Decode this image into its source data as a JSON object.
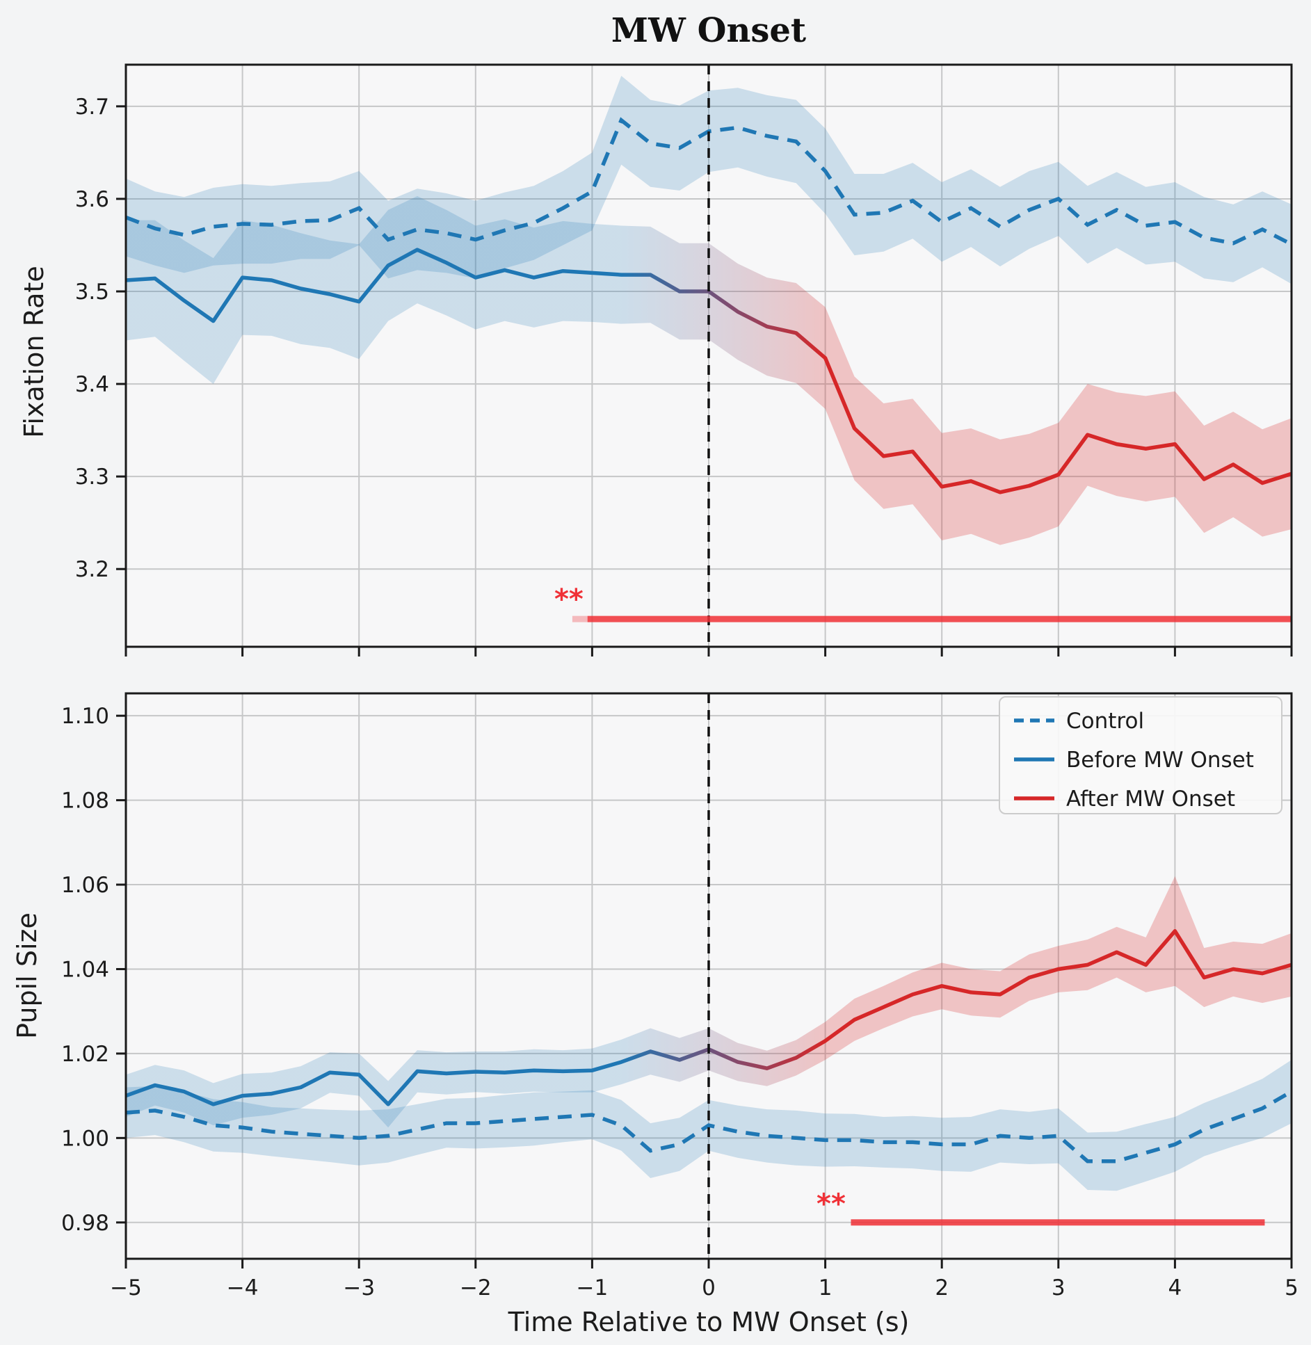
{
  "title": "MW Onset",
  "colors": {
    "blue": "#1f77b4",
    "red": "#d62728",
    "transition_purple": "#7a4e74",
    "significance": "#f03137",
    "grid": "#c6c7c8",
    "axes_background": "#f7f7f8",
    "figure_background": "#f3f4f5",
    "spine": "#1a1a1a",
    "text": "#1c1c1c"
  },
  "legend": {
    "items": [
      {
        "label": "Control",
        "style": "dashed",
        "color": "#1f77b4"
      },
      {
        "label": "Before MW Onset",
        "style": "solid",
        "color": "#1f77b4"
      },
      {
        "label": "After MW Onset",
        "style": "solid",
        "color": "#d62728"
      }
    ]
  },
  "chart_data": [
    {
      "type": "line",
      "title": "",
      "ylabel": "Fixation Rate",
      "xlabel": "",
      "xlim": [
        -5,
        5
      ],
      "ylim": [
        3.116,
        3.745
      ],
      "grid": true,
      "onset_line_x": 0,
      "xticks": {
        "values": [
          -5,
          -4,
          -3,
          -2,
          -1,
          0,
          1,
          2,
          3,
          4,
          5
        ],
        "labels": [
          "−5",
          "−4",
          "−3",
          "−2",
          "−1",
          "0",
          "1",
          "2",
          "3",
          "4",
          "5"
        ],
        "show_labels": false
      },
      "yticks": {
        "values": [
          3.2,
          3.3,
          3.4,
          3.5,
          3.6,
          3.7
        ],
        "labels": [
          "3.2",
          "3.3",
          "3.4",
          "3.5",
          "3.6",
          "3.7"
        ]
      },
      "series": [
        {
          "name": "Control",
          "style": "dashed",
          "color": "#1f77b4",
          "x": [
            -5,
            -4.75,
            -4.5,
            -4.25,
            -4,
            -3.75,
            -3.5,
            -3.25,
            -3,
            -2.75,
            -2.5,
            -2.25,
            -2,
            -1.75,
            -1.5,
            -1.25,
            -1,
            -0.75,
            -0.5,
            -0.25,
            0,
            0.25,
            0.5,
            0.75,
            1,
            1.25,
            1.5,
            1.75,
            2,
            2.25,
            2.5,
            2.75,
            3,
            3.25,
            3.5,
            3.75,
            4,
            4.25,
            4.5,
            4.75,
            5
          ],
          "y": [
            3.58,
            3.568,
            3.561,
            3.57,
            3.573,
            3.572,
            3.576,
            3.577,
            3.59,
            3.556,
            3.567,
            3.563,
            3.556,
            3.566,
            3.574,
            3.59,
            3.608,
            3.685,
            3.66,
            3.655,
            3.673,
            3.677,
            3.668,
            3.662,
            3.63,
            3.583,
            3.585,
            3.598,
            3.575,
            3.59,
            3.57,
            3.588,
            3.6,
            3.572,
            3.588,
            3.571,
            3.575,
            3.558,
            3.552,
            3.567,
            3.551
          ],
          "band_halfwidth": [
            0.042,
            0.04,
            0.041,
            0.042,
            0.043,
            0.042,
            0.041,
            0.042,
            0.04,
            0.042,
            0.044,
            0.043,
            0.042,
            0.041,
            0.04,
            0.04,
            0.042,
            0.048,
            0.047,
            0.046,
            0.044,
            0.043,
            0.044,
            0.045,
            0.046,
            0.044,
            0.042,
            0.041,
            0.043,
            0.042,
            0.043,
            0.042,
            0.04,
            0.042,
            0.041,
            0.042,
            0.043,
            0.044,
            0.042,
            0.041,
            0.043
          ]
        },
        {
          "name": "Before MW Onset",
          "style": "solid",
          "color": "#1f77b4",
          "x": [
            -5,
            -4.75,
            -4.5,
            -4.25,
            -4,
            -3.75,
            -3.5,
            -3.25,
            -3,
            -2.75,
            -2.5,
            -2.25,
            -2,
            -1.75,
            -1.5,
            -1.25,
            -1,
            -0.75,
            -0.5,
            -0.25,
            0
          ],
          "y": [
            3.512,
            3.514,
            3.49,
            3.468,
            3.515,
            3.512,
            3.503,
            3.497,
            3.489,
            3.528,
            3.545,
            3.531,
            3.515,
            3.523,
            3.515,
            3.522,
            3.52,
            3.518,
            3.518,
            3.5,
            3.5
          ],
          "band_halfwidth": [
            0.065,
            0.063,
            0.065,
            0.068,
            0.062,
            0.06,
            0.06,
            0.058,
            0.062,
            0.06,
            0.058,
            0.057,
            0.056,
            0.055,
            0.054,
            0.054,
            0.053,
            0.053,
            0.052,
            0.052,
            0.052
          ]
        },
        {
          "name": "After MW Onset",
          "style": "solid",
          "color": "#d62728",
          "x": [
            0,
            0.25,
            0.5,
            0.75,
            1,
            1.25,
            1.5,
            1.75,
            2,
            2.25,
            2.5,
            2.75,
            3,
            3.25,
            3.5,
            3.75,
            4,
            4.25,
            4.5,
            4.75,
            5
          ],
          "y": [
            3.5,
            3.478,
            3.462,
            3.455,
            3.428,
            3.352,
            3.322,
            3.327,
            3.289,
            3.295,
            3.283,
            3.29,
            3.302,
            3.345,
            3.335,
            3.33,
            3.335,
            3.297,
            3.313,
            3.293,
            3.303
          ],
          "band_halfwidth": [
            0.052,
            0.052,
            0.053,
            0.054,
            0.055,
            0.056,
            0.057,
            0.057,
            0.058,
            0.057,
            0.057,
            0.056,
            0.056,
            0.055,
            0.056,
            0.057,
            0.057,
            0.058,
            0.057,
            0.058,
            0.06
          ]
        }
      ],
      "significance": {
        "label": "**",
        "x_start": -1.04,
        "x_end": 5.0,
        "y": 3.146,
        "label_x": -1.2,
        "label_y": 3.168,
        "lead_in": true
      }
    },
    {
      "type": "line",
      "title": "",
      "ylabel": "Pupil Size",
      "xlabel": "Time Relative to MW Onset (s)",
      "xlim": [
        -5,
        5
      ],
      "ylim": [
        0.9714,
        1.1053
      ],
      "grid": true,
      "onset_line_x": 0,
      "xticks": {
        "values": [
          -5,
          -4,
          -3,
          -2,
          -1,
          0,
          1,
          2,
          3,
          4,
          5
        ],
        "labels": [
          "−5",
          "−4",
          "−3",
          "−2",
          "−1",
          "0",
          "1",
          "2",
          "3",
          "4",
          "5"
        ],
        "show_labels": true
      },
      "yticks": {
        "values": [
          0.98,
          1.0,
          1.02,
          1.04,
          1.06,
          1.08,
          1.1
        ],
        "labels": [
          "0.98",
          "1.00",
          "1.02",
          "1.04",
          "1.06",
          "1.08",
          "1.10"
        ]
      },
      "series": [
        {
          "name": "Control",
          "style": "dashed",
          "color": "#1f77b4",
          "x": [
            -5,
            -4.75,
            -4.5,
            -4.25,
            -4,
            -3.75,
            -3.5,
            -3.25,
            -3,
            -2.75,
            -2.5,
            -2.25,
            -2,
            -1.75,
            -1.5,
            -1.25,
            -1,
            -0.75,
            -0.5,
            -0.25,
            0,
            0.25,
            0.5,
            0.75,
            1,
            1.25,
            1.5,
            1.75,
            2,
            2.25,
            2.5,
            2.75,
            3,
            3.25,
            3.5,
            3.75,
            4,
            4.25,
            4.5,
            4.75,
            5
          ],
          "y": [
            1.006,
            1.0065,
            1.005,
            1.003,
            1.0025,
            1.0015,
            1.001,
            1.0005,
            1.0,
            1.0005,
            1.002,
            1.0035,
            1.0035,
            1.004,
            1.0045,
            1.005,
            1.0055,
            1.003,
            0.997,
            0.9985,
            1.003,
            1.0015,
            1.0005,
            1.0,
            0.9995,
            0.9995,
            0.999,
            0.999,
            0.9985,
            0.9985,
            1.0005,
            1.0,
            1.0005,
            0.9945,
            0.9945,
            0.9965,
            0.9985,
            1.002,
            1.0045,
            1.007,
            1.011
          ],
          "band_halfwidth": [
            0.006,
            0.0058,
            0.006,
            0.0062,
            0.006,
            0.0058,
            0.006,
            0.0062,
            0.0065,
            0.0063,
            0.006,
            0.0058,
            0.006,
            0.0062,
            0.0063,
            0.006,
            0.0058,
            0.006,
            0.0065,
            0.0063,
            0.006,
            0.0062,
            0.0063,
            0.0065,
            0.0063,
            0.0062,
            0.006,
            0.0062,
            0.0063,
            0.0065,
            0.0063,
            0.0062,
            0.0065,
            0.0068,
            0.007,
            0.0068,
            0.0065,
            0.0063,
            0.0065,
            0.007,
            0.0075
          ]
        },
        {
          "name": "Before MW Onset",
          "style": "solid",
          "color": "#1f77b4",
          "x": [
            -5,
            -4.75,
            -4.5,
            -4.25,
            -4,
            -3.75,
            -3.5,
            -3.25,
            -3,
            -2.75,
            -2.5,
            -2.25,
            -2,
            -1.75,
            -1.5,
            -1.25,
            -1,
            -0.75,
            -0.5,
            -0.25,
            0
          ],
          "y": [
            1.01,
            1.0125,
            1.011,
            1.008,
            1.01,
            1.0105,
            1.012,
            1.0155,
            1.015,
            1.008,
            1.0158,
            1.0153,
            1.0157,
            1.0155,
            1.016,
            1.0158,
            1.016,
            1.018,
            1.0205,
            1.0185,
            1.021
          ],
          "band_halfwidth": [
            0.005,
            0.0048,
            0.005,
            0.005,
            0.0052,
            0.005,
            0.005,
            0.0048,
            0.005,
            0.0055,
            0.005,
            0.005,
            0.0048,
            0.005,
            0.005,
            0.005,
            0.0052,
            0.0053,
            0.0055,
            0.0052,
            0.005
          ]
        },
        {
          "name": "After MW Onset",
          "style": "solid",
          "color": "#d62728",
          "x": [
            0,
            0.25,
            0.5,
            0.75,
            1,
            1.25,
            1.5,
            1.75,
            2,
            2.25,
            2.5,
            2.75,
            3,
            3.25,
            3.5,
            3.75,
            4,
            4.25,
            4.5,
            4.75,
            5
          ],
          "y": [
            1.021,
            1.018,
            1.0165,
            1.019,
            1.023,
            1.028,
            1.031,
            1.034,
            1.036,
            1.0345,
            1.034,
            1.038,
            1.04,
            1.041,
            1.044,
            1.041,
            1.049,
            1.038,
            1.04,
            1.039,
            1.041
          ],
          "band_halfwidth": [
            0.005,
            0.0045,
            0.0042,
            0.0042,
            0.0045,
            0.005,
            0.005,
            0.0052,
            0.0055,
            0.0055,
            0.0055,
            0.0055,
            0.0055,
            0.006,
            0.006,
            0.0065,
            0.013,
            0.007,
            0.0065,
            0.007,
            0.0075
          ]
        }
      ],
      "significance": {
        "label": "**",
        "x_start": 1.22,
        "x_end": 4.77,
        "y": 0.98,
        "label_x": 1.05,
        "label_y": 0.9845,
        "lead_in": false
      }
    }
  ]
}
